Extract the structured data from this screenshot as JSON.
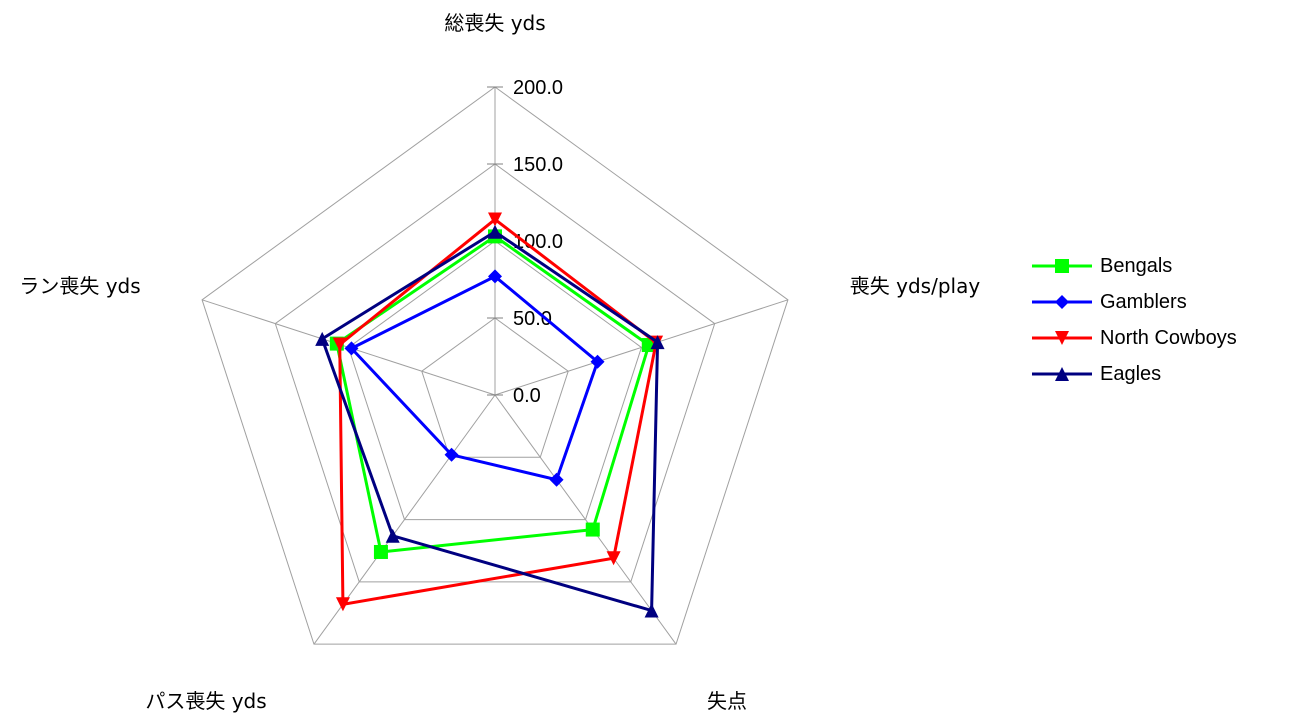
{
  "chart_data": {
    "type": "radar",
    "axes": [
      "総喪失 yds",
      "喪失 yds/play",
      "失点",
      "パス喪失 yds",
      "ラン喪失 yds"
    ],
    "ticks": [
      "0.0",
      "50.0",
      "100.0",
      "150.0",
      "200.0"
    ],
    "rlim": [
      0,
      200
    ],
    "grid": true,
    "legend_position": "right",
    "series": [
      {
        "name": "Bengals",
        "color": "#00ff00",
        "marker": "square",
        "values": [
          103,
          105,
          108,
          126,
          108
        ]
      },
      {
        "name": "Gamblers",
        "color": "#0000ff",
        "marker": "diamond",
        "values": [
          77,
          70,
          68,
          48,
          98
        ]
      },
      {
        "name": "North Cowboys",
        "color": "#ff0000",
        "marker": "triangle-down",
        "values": [
          114,
          110,
          131,
          168,
          106
        ]
      },
      {
        "name": "Eagles",
        "color": "#000080",
        "marker": "triangle-up",
        "values": [
          106,
          111,
          173,
          113,
          118
        ]
      }
    ]
  }
}
